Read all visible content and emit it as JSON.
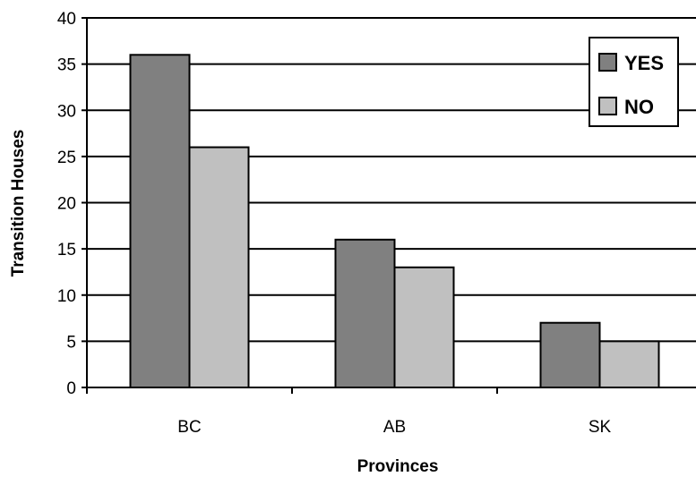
{
  "chart_data": {
    "type": "bar",
    "xlabel": "Provinces",
    "ylabel": "Transition Houses",
    "categories": [
      "BC",
      "AB",
      "SK"
    ],
    "series": [
      {
        "name": "YES",
        "values": [
          36,
          16,
          7
        ],
        "color": "#808080"
      },
      {
        "name": "NO",
        "values": [
          26,
          13,
          5
        ],
        "color": "#c0c0c0"
      }
    ],
    "ylim": [
      0,
      40
    ],
    "yticks": [
      0,
      5,
      10,
      15,
      20,
      25,
      30,
      35,
      40
    ],
    "grid": true,
    "legend_position": "top-right"
  }
}
